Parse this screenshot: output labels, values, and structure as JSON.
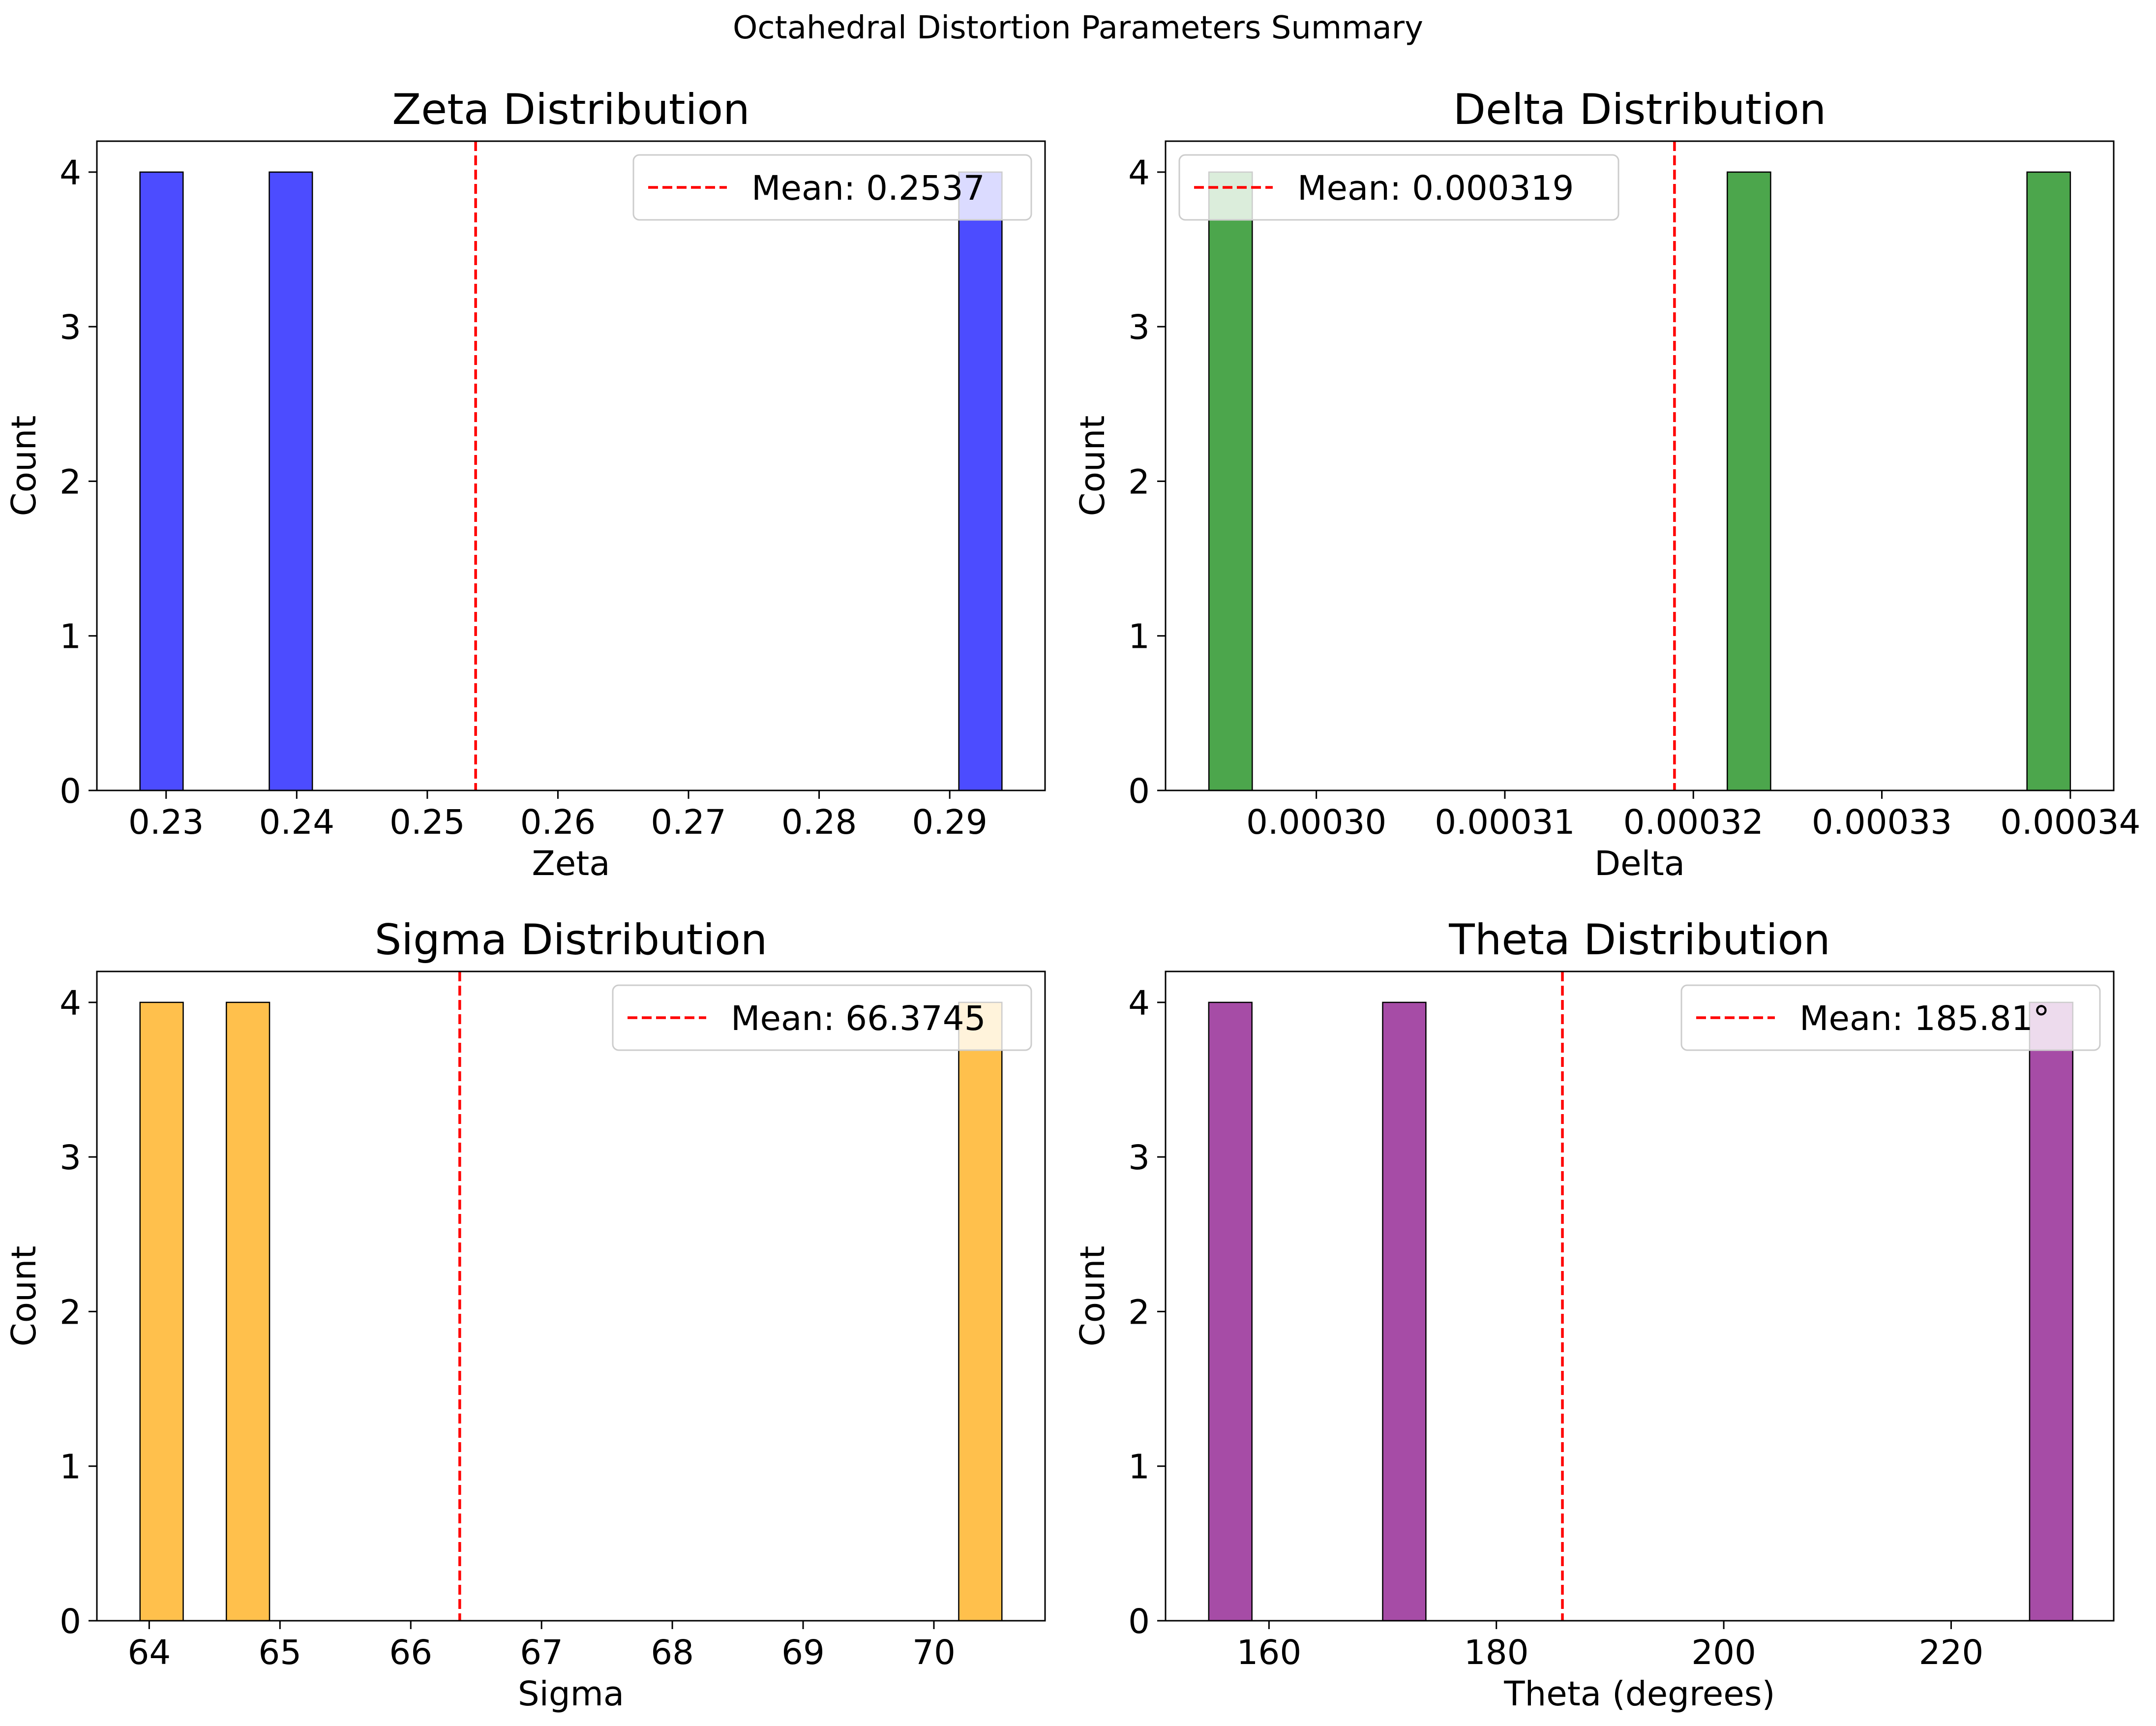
{
  "figure": {
    "suptitle": "Octahedral Distortion Parameters Summary"
  },
  "mean_color": "#ff0000",
  "chart_data": [
    {
      "type": "bar",
      "title": "Zeta Distribution",
      "xlabel": "Zeta",
      "ylabel": "Count",
      "color": "#0000ff",
      "xlim": [
        0.2247,
        0.2973
      ],
      "ylim": [
        0,
        4.2
      ],
      "xticks": [
        0.23,
        0.24,
        0.25,
        0.26,
        0.27,
        0.28,
        0.29
      ],
      "xtick_labels": [
        "0.23",
        "0.24",
        "0.25",
        "0.26",
        "0.27",
        "0.28",
        "0.29"
      ],
      "yticks": [
        0,
        1,
        2,
        3,
        4
      ],
      "ytick_labels": [
        "0",
        "1",
        "2",
        "3",
        "4"
      ],
      "bars": [
        {
          "x0": 0.228,
          "x1": 0.2313,
          "count": 4
        },
        {
          "x0": 0.2379,
          "x1": 0.2412,
          "count": 4
        },
        {
          "x0": 0.2907,
          "x1": 0.294,
          "count": 4
        }
      ],
      "mean": 0.2537,
      "legend": {
        "label": "Mean: 0.2537",
        "placement": "upper right"
      },
      "grid": false
    },
    {
      "type": "bar",
      "title": "Delta Distribution",
      "xlabel": "Delta",
      "ylabel": "Count",
      "color": "#008000",
      "xlim": [
        0.000292,
        0.0003423
      ],
      "ylim": [
        0,
        4.2
      ],
      "xticks": [
        0.0003,
        0.00031,
        0.00032,
        0.00033,
        0.00034
      ],
      "xtick_labels": [
        "0.00030",
        "0.00031",
        "0.00032",
        "0.00033",
        "0.00034"
      ],
      "yticks": [
        0,
        1,
        2,
        3,
        4
      ],
      "ytick_labels": [
        "0",
        "1",
        "2",
        "3",
        "4"
      ],
      "bars": [
        {
          "x0": 0.0002943,
          "x1": 0.0002966,
          "count": 4
        },
        {
          "x0": 0.0003218,
          "x1": 0.0003241,
          "count": 4
        },
        {
          "x0": 0.0003377,
          "x1": 0.00034,
          "count": 4
        }
      ],
      "mean": 0.000319,
      "legend": {
        "label": "Mean: 0.000319",
        "placement": "upper left"
      },
      "grid": false
    },
    {
      "type": "bar",
      "title": "Sigma Distribution",
      "xlabel": "Sigma",
      "ylabel": "Count",
      "color": "#ffa500",
      "xlim": [
        63.6,
        70.85
      ],
      "ylim": [
        0,
        4.2
      ],
      "xticks": [
        64,
        65,
        66,
        67,
        68,
        69,
        70
      ],
      "xtick_labels": [
        "64",
        "65",
        "66",
        "67",
        "68",
        "69",
        "70"
      ],
      "yticks": [
        0,
        1,
        2,
        3,
        4
      ],
      "ytick_labels": [
        "0",
        "1",
        "2",
        "3",
        "4"
      ],
      "bars": [
        {
          "x0": 63.93,
          "x1": 64.26,
          "count": 4
        },
        {
          "x0": 64.59,
          "x1": 64.92,
          "count": 4
        },
        {
          "x0": 70.19,
          "x1": 70.52,
          "count": 4
        }
      ],
      "mean": 66.3745,
      "legend": {
        "label": "Mean: 66.3745",
        "placement": "upper right"
      },
      "grid": false
    },
    {
      "type": "bar",
      "title": "Theta Distribution",
      "xlabel": "Theta (degrees)",
      "ylabel": "Count",
      "color": "#800080",
      "xlim": [
        150.9,
        234.3
      ],
      "ylim": [
        0,
        4.2
      ],
      "xticks": [
        160,
        180,
        200,
        220
      ],
      "xtick_labels": [
        "160",
        "180",
        "200",
        "220"
      ],
      "yticks": [
        0,
        1,
        2,
        3,
        4
      ],
      "ytick_labels": [
        "0",
        "1",
        "2",
        "3",
        "4"
      ],
      "bars": [
        {
          "x0": 154.7,
          "x1": 158.5,
          "count": 4
        },
        {
          "x0": 170.0,
          "x1": 173.8,
          "count": 4
        },
        {
          "x0": 226.9,
          "x1": 230.7,
          "count": 4
        }
      ],
      "mean": 185.81,
      "legend": {
        "label": "Mean: 185.81°",
        "placement": "upper right"
      },
      "grid": false
    }
  ]
}
